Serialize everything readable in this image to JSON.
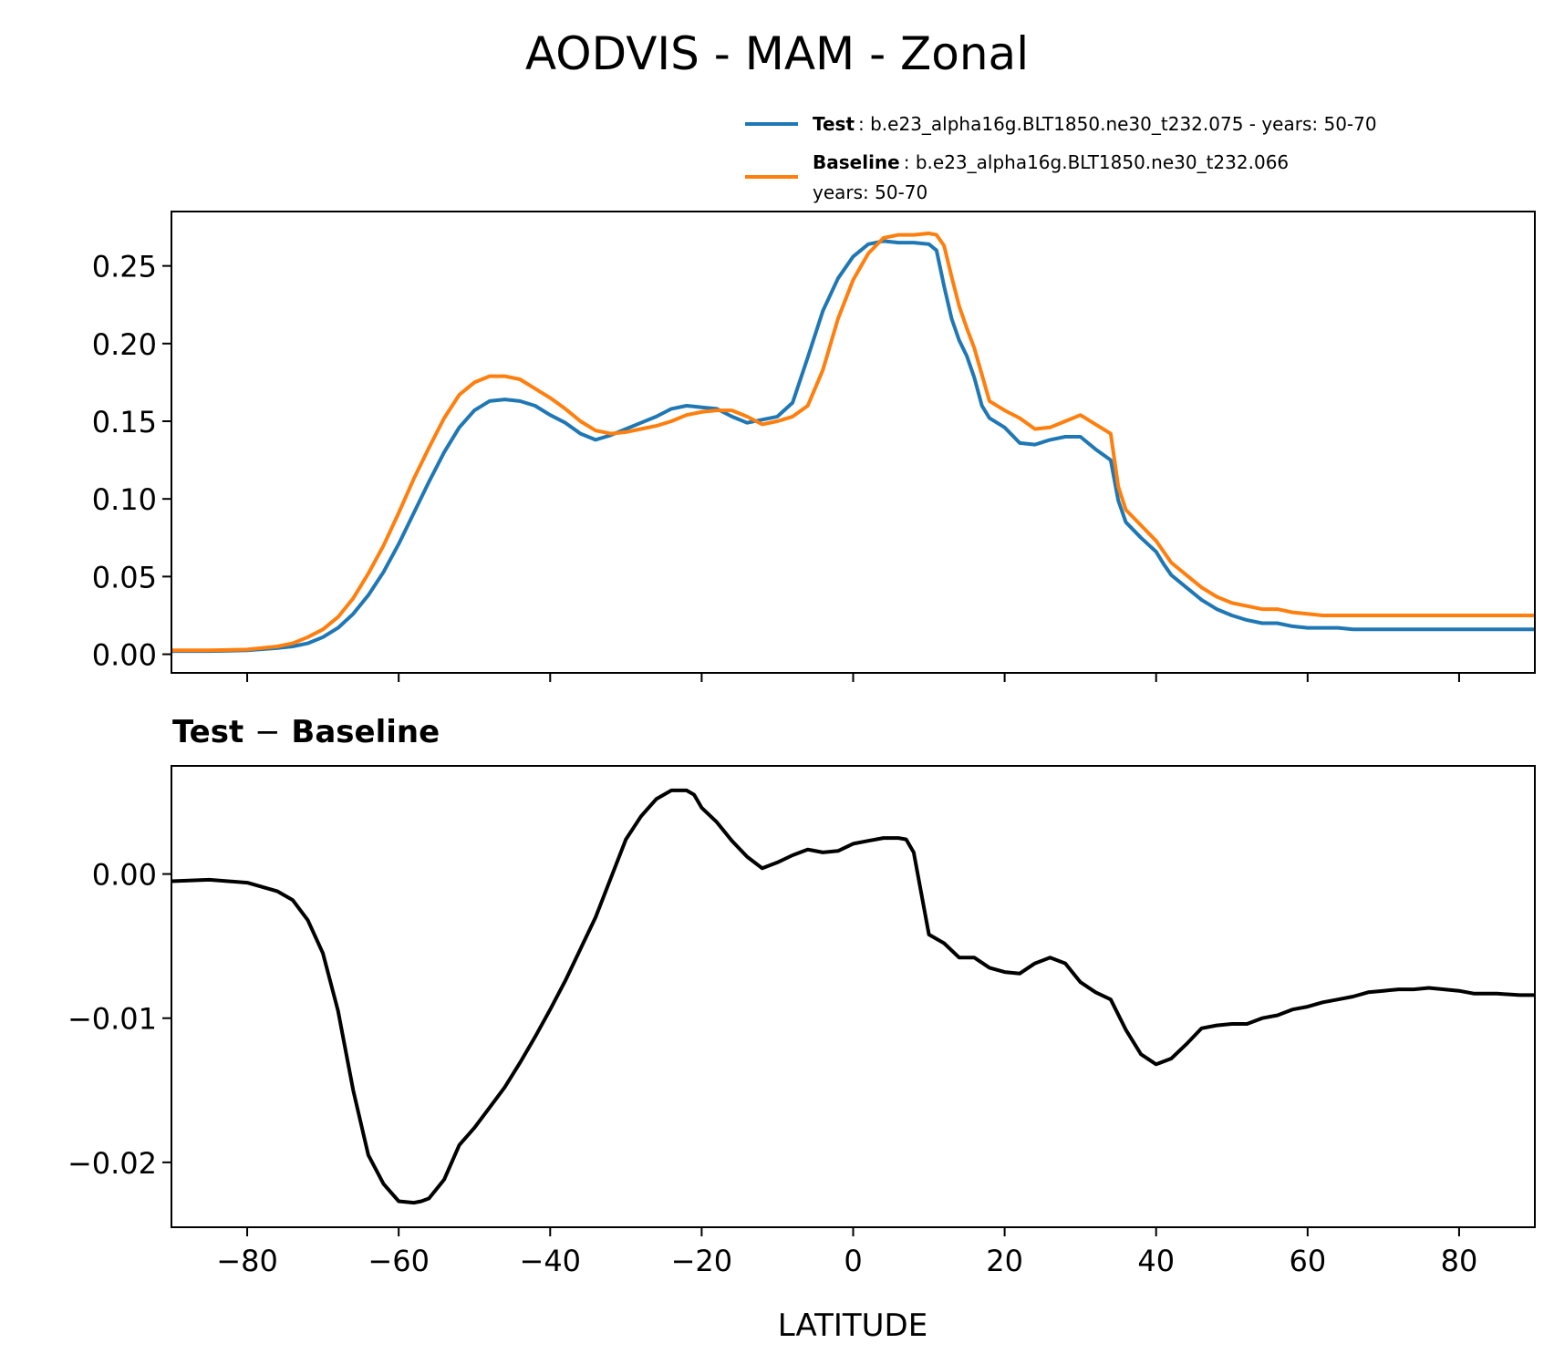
{
  "title": "AODVIS - MAM - Zonal",
  "legend": {
    "test_name": "Test",
    "test_desc": ": b.e23_alpha16g.BLT1850.ne30_t232.075 - years: 50-70",
    "baseline_name": "Baseline",
    "baseline_desc": ": b.e23_alpha16g.BLT1850.ne30_t232.066",
    "baseline_desc2": "years: 50-70"
  },
  "colors": {
    "test": "#1f77b4",
    "baseline": "#ff7f0e",
    "diff": "#000000"
  },
  "chart_data": [
    {
      "type": "line",
      "title": "",
      "xlabel": "",
      "ylabel": "",
      "xlim": [
        -90,
        90
      ],
      "ylim": [
        -0.012,
        0.285
      ],
      "yticks": [
        0.0,
        0.05,
        0.1,
        0.15,
        0.2,
        0.25
      ],
      "ytick_labels": [
        "0.00",
        "0.05",
        "0.10",
        "0.15",
        "0.20",
        "0.25"
      ],
      "xticks": [
        -80,
        -60,
        -40,
        -20,
        0,
        20,
        40,
        60,
        80
      ],
      "legend": "top-right, outside above axes",
      "x": [
        -90,
        -85,
        -80,
        -76,
        -74,
        -72,
        -70,
        -68,
        -66,
        -64,
        -62,
        -60,
        -58,
        -56,
        -54,
        -52,
        -50,
        -48,
        -46,
        -44,
        -42,
        -40,
        -38,
        -36,
        -34,
        -32,
        -30,
        -28,
        -26,
        -24,
        -22,
        -20,
        -18,
        -16,
        -14,
        -12,
        -10,
        -8,
        -6,
        -4,
        -2,
        0,
        2,
        4,
        6,
        8,
        10,
        11,
        12,
        13,
        14,
        15,
        16,
        17,
        18,
        20,
        22,
        24,
        26,
        28,
        30,
        32,
        34,
        35,
        36,
        38,
        40,
        41,
        42,
        44,
        46,
        48,
        50,
        52,
        54,
        56,
        58,
        60,
        62,
        64,
        66,
        68,
        70,
        72,
        74,
        76,
        78,
        80,
        85,
        90
      ],
      "series": [
        {
          "name": "Test",
          "values": [
            0.002,
            0.002,
            0.0025,
            0.004,
            0.005,
            0.007,
            0.011,
            0.017,
            0.026,
            0.038,
            0.053,
            0.071,
            0.091,
            0.111,
            0.13,
            0.146,
            0.157,
            0.163,
            0.164,
            0.163,
            0.16,
            0.154,
            0.149,
            0.142,
            0.138,
            0.141,
            0.145,
            0.149,
            0.153,
            0.158,
            0.16,
            0.159,
            0.158,
            0.153,
            0.149,
            0.151,
            0.153,
            0.162,
            0.191,
            0.221,
            0.242,
            0.256,
            0.264,
            0.266,
            0.265,
            0.265,
            0.264,
            0.26,
            0.237,
            0.216,
            0.202,
            0.192,
            0.178,
            0.16,
            0.152,
            0.146,
            0.136,
            0.135,
            0.138,
            0.14,
            0.14,
            0.132,
            0.125,
            0.099,
            0.085,
            0.075,
            0.066,
            0.058,
            0.051,
            0.043,
            0.035,
            0.029,
            0.025,
            0.022,
            0.02,
            0.02,
            0.018,
            0.017,
            0.017,
            0.017,
            0.016,
            0.016,
            0.016,
            0.016,
            0.016,
            0.016,
            0.016,
            0.016,
            0.016,
            0.016
          ]
        },
        {
          "name": "Baseline",
          "values": [
            0.0025,
            0.0025,
            0.003,
            0.005,
            0.007,
            0.011,
            0.016,
            0.024,
            0.036,
            0.052,
            0.07,
            0.091,
            0.113,
            0.133,
            0.152,
            0.167,
            0.175,
            0.179,
            0.179,
            0.177,
            0.171,
            0.165,
            0.158,
            0.15,
            0.144,
            0.142,
            0.143,
            0.145,
            0.147,
            0.15,
            0.154,
            0.156,
            0.157,
            0.157,
            0.153,
            0.148,
            0.15,
            0.153,
            0.16,
            0.183,
            0.216,
            0.241,
            0.258,
            0.268,
            0.27,
            0.27,
            0.271,
            0.27,
            0.263,
            0.243,
            0.224,
            0.21,
            0.197,
            0.18,
            0.163,
            0.157,
            0.152,
            0.145,
            0.146,
            0.15,
            0.154,
            0.148,
            0.142,
            0.108,
            0.093,
            0.083,
            0.073,
            0.066,
            0.059,
            0.051,
            0.043,
            0.037,
            0.033,
            0.031,
            0.029,
            0.029,
            0.027,
            0.026,
            0.025,
            0.025,
            0.025,
            0.025,
            0.025,
            0.025,
            0.025,
            0.025,
            0.025,
            0.025,
            0.025,
            0.025
          ]
        }
      ]
    },
    {
      "type": "line",
      "title": "Test − Baseline",
      "title_left": "Test",
      "title_op": "−",
      "title_right": "Baseline",
      "xlabel": "LATITUDE",
      "ylabel": "",
      "xlim": [
        -90,
        90
      ],
      "ylim": [
        -0.0245,
        0.0075
      ],
      "yticks": [
        -0.02,
        -0.01,
        0.0
      ],
      "ytick_labels": [
        "−0.02",
        "−0.01",
        "0.00"
      ],
      "xticks": [
        -80,
        -60,
        -40,
        -20,
        0,
        20,
        40,
        60,
        80
      ],
      "xtick_labels": [
        "−80",
        "−60",
        "−40",
        "−20",
        "0",
        "20",
        "40",
        "60",
        "80"
      ],
      "x": [
        -90,
        -85,
        -80,
        -76,
        -74,
        -72,
        -70,
        -68,
        -66,
        -64,
        -62,
        -60,
        -58,
        -57,
        -56,
        -54,
        -52,
        -50,
        -48,
        -46,
        -44,
        -42,
        -40,
        -38,
        -36,
        -34,
        -32,
        -30,
        -28,
        -26,
        -24,
        -22,
        -21,
        -20,
        -18,
        -16,
        -14,
        -12,
        -10,
        -8,
        -6,
        -4,
        -2,
        0,
        2,
        4,
        6,
        7,
        8,
        10,
        12,
        14,
        16,
        18,
        20,
        22,
        24,
        26,
        28,
        30,
        32,
        34,
        36,
        38,
        40,
        42,
        44,
        46,
        48,
        50,
        52,
        54,
        56,
        58,
        60,
        62,
        64,
        66,
        68,
        70,
        72,
        74,
        76,
        78,
        80,
        82,
        85,
        88,
        90
      ],
      "series": [
        {
          "name": "Test − Baseline",
          "values": [
            -0.0005,
            -0.0004,
            -0.0006,
            -0.0012,
            -0.0018,
            -0.0032,
            -0.0055,
            -0.0095,
            -0.015,
            -0.0195,
            -0.0215,
            -0.0227,
            -0.0228,
            -0.0227,
            -0.0225,
            -0.0212,
            -0.0188,
            -0.0176,
            -0.0162,
            -0.0148,
            -0.0131,
            -0.0113,
            -0.0094,
            -0.0074,
            -0.0052,
            -0.003,
            -0.0003,
            0.0024,
            0.004,
            0.0052,
            0.0058,
            0.0058,
            0.0055,
            0.0046,
            0.0036,
            0.0023,
            0.0012,
            0.0004,
            0.0008,
            0.0013,
            0.0017,
            0.0015,
            0.0016,
            0.0021,
            0.0023,
            0.0025,
            0.0025,
            0.0024,
            0.0015,
            -0.0042,
            -0.0048,
            -0.0058,
            -0.0058,
            -0.0065,
            -0.0068,
            -0.0069,
            -0.0062,
            -0.0058,
            -0.0062,
            -0.0075,
            -0.0082,
            -0.0087,
            -0.0108,
            -0.0125,
            -0.0132,
            -0.0128,
            -0.0118,
            -0.0107,
            -0.0105,
            -0.0104,
            -0.0104,
            -0.01,
            -0.0098,
            -0.0094,
            -0.0092,
            -0.0089,
            -0.0087,
            -0.0085,
            -0.0082,
            -0.0081,
            -0.008,
            -0.008,
            -0.0079,
            -0.008,
            -0.0081,
            -0.0083,
            -0.0083,
            -0.0084,
            -0.0084
          ]
        }
      ]
    }
  ]
}
